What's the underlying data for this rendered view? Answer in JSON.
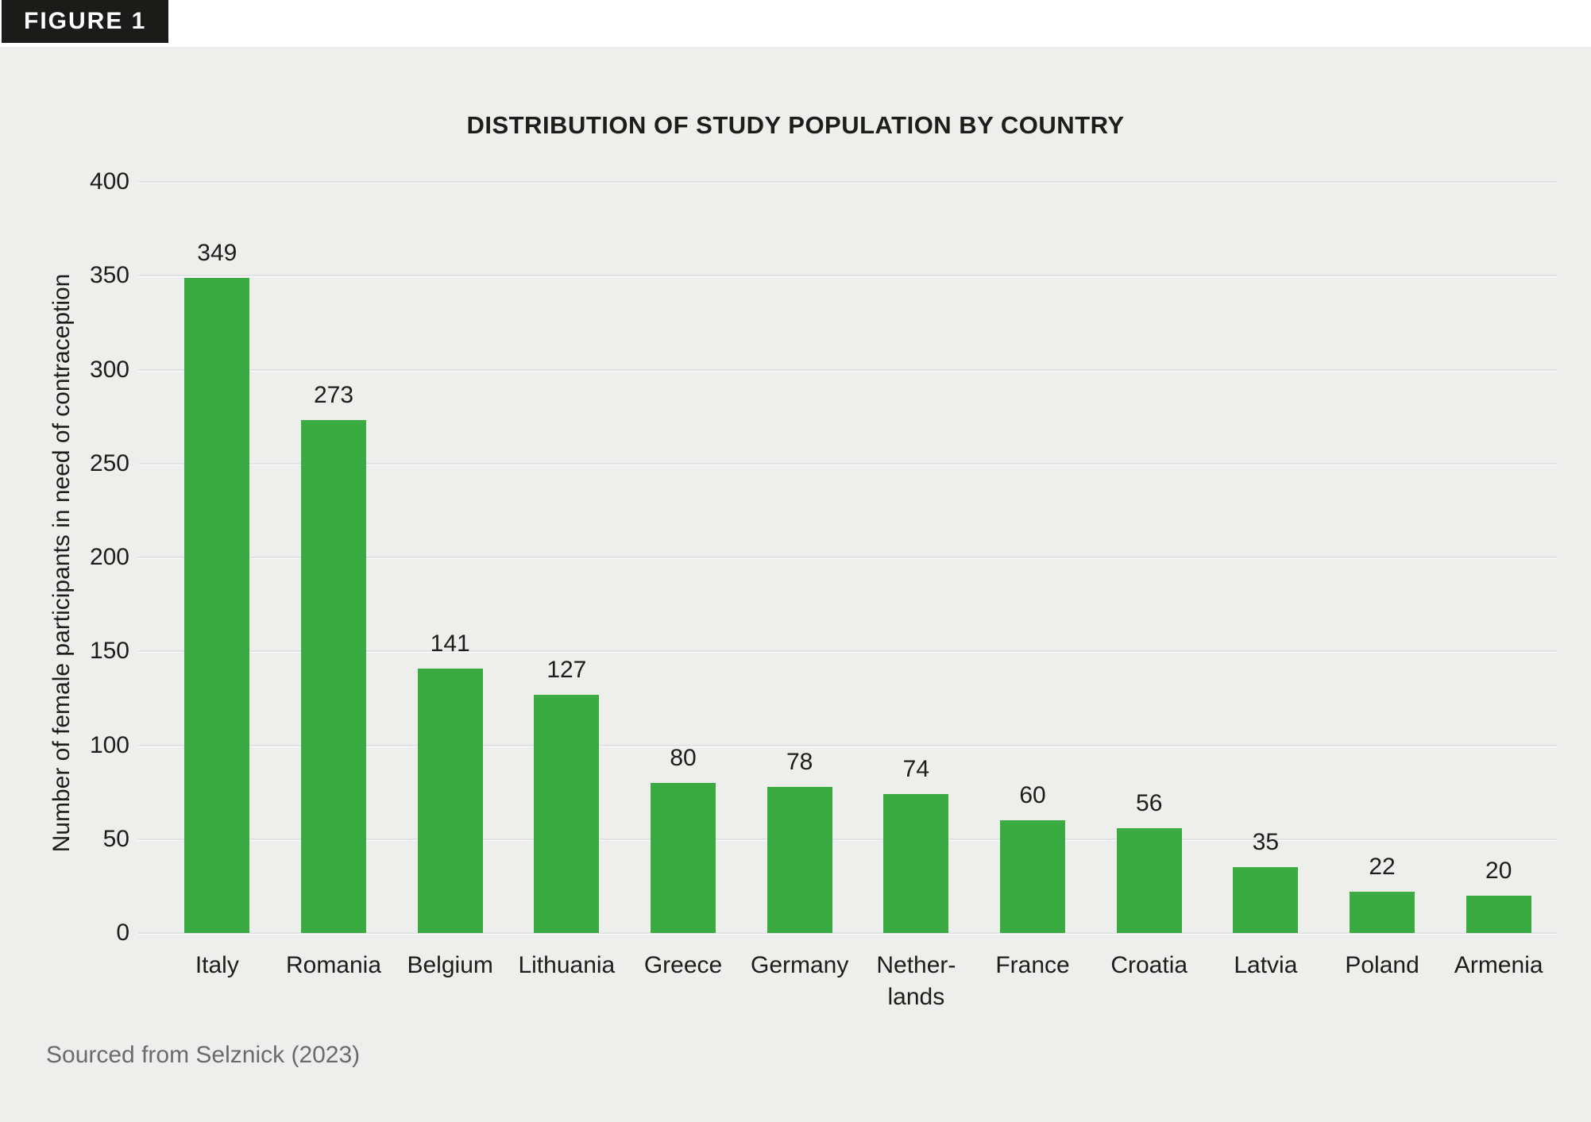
{
  "figure_label": "FIGURE 1",
  "source": "Sourced from Selznick (2023)",
  "colors": {
    "bar": "#3aaa43",
    "panel_background": "#eeeeed",
    "badge_background": "#1b1b19",
    "badge_text": "#ffffff",
    "text": "#1d1d1b",
    "gridline": "#e2e2e2",
    "source_text": "#6b6b6b"
  },
  "chart_data": {
    "type": "bar",
    "title": "DISTRIBUTION OF STUDY POPULATION BY COUNTRY",
    "categories": [
      "Italy",
      "Romania",
      "Belgium",
      "Lithuania",
      "Greece",
      "Germany",
      "Nether-\nlands",
      "France",
      "Croatia",
      "Latvia",
      "Poland",
      "Armenia"
    ],
    "values": [
      349,
      273,
      141,
      127,
      80,
      78,
      74,
      60,
      56,
      35,
      22,
      20
    ],
    "xlabel": "",
    "ylabel": "Number of female participants in need of contraception",
    "ylim": [
      0,
      400
    ],
    "yticks": [
      0,
      50,
      100,
      150,
      200,
      250,
      300,
      350,
      400
    ],
    "grid": true,
    "legend": false,
    "bar_color": "#3aaa43"
  }
}
